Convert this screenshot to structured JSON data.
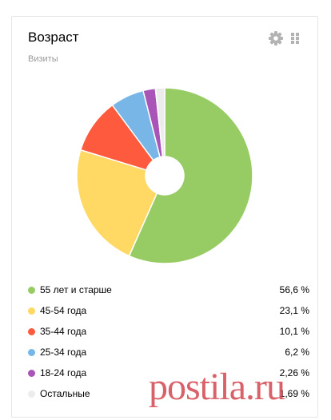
{
  "widget": {
    "title": "Возраст",
    "subtitle": "Визиты",
    "gear_icon": "gear-icon",
    "drag_icon": "drag-handle-icon"
  },
  "chart_data": {
    "type": "pie",
    "donut": true,
    "categories": [
      "55 лет и старше",
      "45-54 года",
      "35-44 года",
      "25-34 года",
      "18-24 года",
      "Остальные"
    ],
    "values": [
      56.6,
      23.1,
      10.1,
      6.2,
      2.26,
      1.69
    ],
    "value_labels": [
      "56,6 %",
      "23,1 %",
      "10,1 %",
      "6,2 %",
      "2,26 %",
      "1,69 %"
    ],
    "colors": [
      "#97cc64",
      "#ffd963",
      "#fd5a3e",
      "#77b6e7",
      "#a955b8",
      "#ececec"
    ],
    "legend_position": "bottom"
  },
  "watermark": "postila.ru"
}
